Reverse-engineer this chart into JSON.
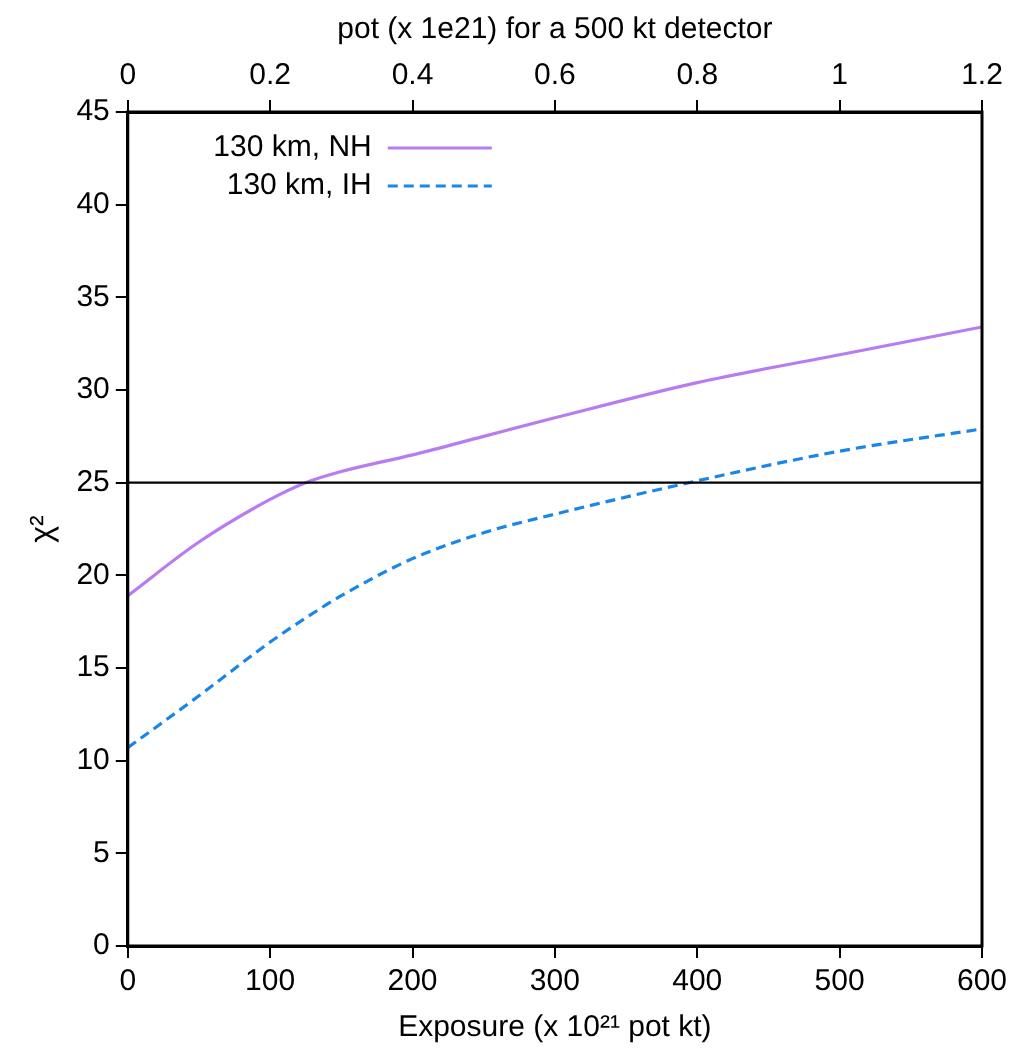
{
  "chart_data": {
    "type": "line",
    "xlabel": "Exposure (x 10²¹ pot kt)",
    "ylabel": "χ²",
    "x2label": "pot (x 1e21) for a 500 kt detector",
    "x": [
      0,
      50,
      100,
      125,
      150,
      200,
      250,
      300,
      400,
      500,
      600
    ],
    "series": [
      {
        "name": "130 km, NH",
        "color": "#b77cf2",
        "line_style": "solid",
        "values": [
          18.9,
          21.8,
          24.1,
          25,
          25.6,
          26.5,
          27.5,
          28.5,
          30.4,
          31.9,
          33.4
        ]
      },
      {
        "name": "130 km, IH",
        "color": "#1a86e8",
        "line_style": "dashed",
        "values": [
          10.7,
          13.5,
          16.4,
          17.7,
          18.9,
          20.9,
          22.3,
          23.3,
          25.1,
          26.7,
          27.9
        ]
      }
    ],
    "xlim": [
      0,
      600
    ],
    "xticks": [
      0,
      100,
      200,
      300,
      400,
      500,
      600
    ],
    "ylim": [
      0,
      45
    ],
    "yticks": [
      0,
      5,
      10,
      15,
      20,
      25,
      30,
      35,
      40,
      45
    ],
    "x2lim": [
      0,
      1.2
    ],
    "x2ticks": [
      0,
      0.2,
      0.4,
      0.6,
      0.8,
      1,
      1.2
    ],
    "ref_lines": [
      {
        "axis": "y",
        "value": 25,
        "color": "#000000"
      }
    ],
    "grid": false,
    "legend": "top left",
    "marker": "none"
  }
}
